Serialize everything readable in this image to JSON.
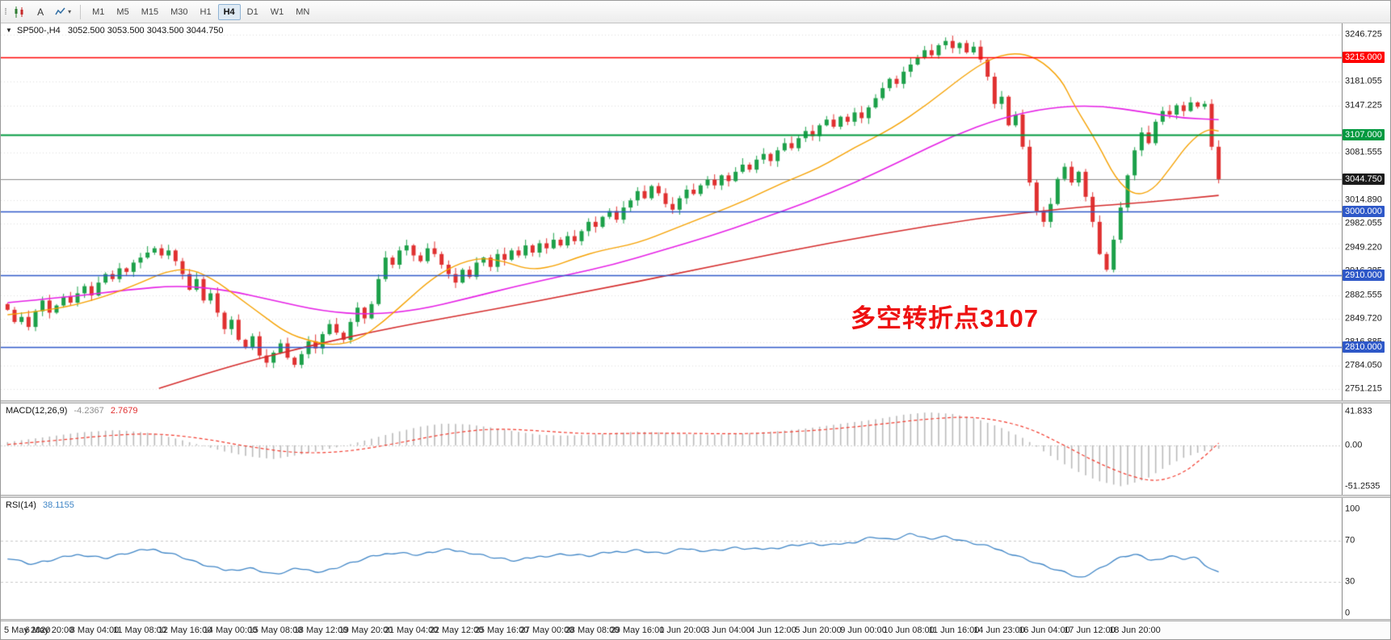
{
  "icons": {
    "symbol_dropdown": "▼",
    "indicator_dropdown": "▾",
    "drag_handle": "⁞⁞"
  },
  "toolbar": {
    "timeframes": [
      "M1",
      "M5",
      "M15",
      "M30",
      "H1",
      "H4",
      "D1",
      "W1",
      "MN"
    ],
    "active_timeframe": "H4",
    "cursor_button_label": "A"
  },
  "header": {
    "symbol": "SP500-,H4",
    "ohlc": "3052.500 3053.500 3043.500 3044.750"
  },
  "chart_data": {
    "type": "candlestick",
    "symbol": "SP500-",
    "timeframe": "H4",
    "ohlc_display": {
      "open": "3052.500",
      "high": "3053.500",
      "low": "3043.500",
      "close": "3044.750"
    },
    "price_range": {
      "max": 3246.725,
      "min": 2751.215
    },
    "price_axis_ticks": [
      "3246.725",
      "3181.055",
      "3147.225",
      "3081.555",
      "3014.890",
      "2982.055",
      "2949.220",
      "2916.385",
      "2882.555",
      "2849.720",
      "2816.885",
      "2784.050",
      "2751.215"
    ],
    "level_lines": [
      {
        "price": 3215.0,
        "label": "3215.000",
        "color": "#FF0000",
        "width": 1.5
      },
      {
        "price": 3107.0,
        "label": "3107.000",
        "color": "#00993F",
        "width": 2
      },
      {
        "price": 3000.0,
        "label": "3000.000",
        "color": "#2E58C8",
        "width": 1.5
      },
      {
        "price": 2910.0,
        "label": "2910.000",
        "color": "#2E58C8",
        "width": 1.5
      },
      {
        "price": 2810.0,
        "label": "2810.000",
        "color": "#2E58C8",
        "width": 1.5
      }
    ],
    "current_price": {
      "price": 3044.75,
      "label": "3044.750",
      "bg": "#1b1b1b",
      "line_color": "#8a8a8a"
    },
    "candle_colors": {
      "up": "#1CA049",
      "down": "#E03030"
    },
    "closes": [
      2862,
      2845,
      2852,
      2838,
      2860,
      2875,
      2858,
      2868,
      2880,
      2872,
      2885,
      2895,
      2882,
      2900,
      2912,
      2905,
      2920,
      2915,
      2928,
      2935,
      2942,
      2948,
      2938,
      2945,
      2930,
      2912,
      2890,
      2905,
      2875,
      2885,
      2858,
      2835,
      2848,
      2820,
      2810,
      2825,
      2798,
      2788,
      2802,
      2815,
      2795,
      2785,
      2800,
      2818,
      2808,
      2828,
      2842,
      2830,
      2820,
      2845,
      2865,
      2850,
      2870,
      2905,
      2935,
      2925,
      2945,
      2952,
      2938,
      2930,
      2948,
      2940,
      2925,
      2912,
      2900,
      2918,
      2908,
      2928,
      2935,
      2922,
      2940,
      2932,
      2945,
      2938,
      2952,
      2942,
      2955,
      2948,
      2960,
      2952,
      2965,
      2958,
      2972,
      2985,
      2978,
      2992,
      3000,
      2988,
      3005,
      3015,
      3028,
      3018,
      3035,
      3025,
      3010,
      3002,
      3018,
      3030,
      3024,
      3036,
      3044,
      3036,
      3050,
      3042,
      3055,
      3065,
      3058,
      3072,
      3080,
      3070,
      3085,
      3095,
      3088,
      3102,
      3112,
      3105,
      3120,
      3128,
      3118,
      3132,
      3125,
      3138,
      3130,
      3145,
      3158,
      3172,
      3185,
      3178,
      3195,
      3205,
      3215,
      3225,
      3218,
      3232,
      3238,
      3228,
      3235,
      3222,
      3230,
      3212,
      3188,
      3150,
      3160,
      3120,
      3135,
      3090,
      3040,
      3000,
      2985,
      3010,
      3045,
      3062,
      3040,
      3055,
      3020,
      2985,
      2940,
      2918,
      2960,
      3005,
      3050,
      3085,
      3110,
      3095,
      3125,
      3140,
      3135,
      3148,
      3140,
      3152,
      3146,
      3150,
      3090,
      3044.75
    ],
    "ma_fast_orange": {
      "color": "#F5A100",
      "anchors": [
        [
          0.0,
          2855
        ],
        [
          0.04,
          2862
        ],
        [
          0.08,
          2880
        ],
        [
          0.11,
          2900
        ],
        [
          0.13,
          2915
        ],
        [
          0.15,
          2920
        ],
        [
          0.17,
          2905
        ],
        [
          0.19,
          2880
        ],
        [
          0.21,
          2855
        ],
        [
          0.23,
          2830
        ],
        [
          0.25,
          2818
        ],
        [
          0.27,
          2812
        ],
        [
          0.29,
          2820
        ],
        [
          0.31,
          2845
        ],
        [
          0.33,
          2875
        ],
        [
          0.35,
          2905
        ],
        [
          0.37,
          2925
        ],
        [
          0.39,
          2935
        ],
        [
          0.41,
          2930
        ],
        [
          0.43,
          2918
        ],
        [
          0.45,
          2922
        ],
        [
          0.47,
          2935
        ],
        [
          0.49,
          2945
        ],
        [
          0.52,
          2955
        ],
        [
          0.55,
          2975
        ],
        [
          0.58,
          2995
        ],
        [
          0.61,
          3015
        ],
        [
          0.64,
          3040
        ],
        [
          0.67,
          3060
        ],
        [
          0.7,
          3090
        ],
        [
          0.73,
          3115
        ],
        [
          0.76,
          3150
        ],
        [
          0.79,
          3190
        ],
        [
          0.81,
          3212
        ],
        [
          0.83,
          3222
        ],
        [
          0.85,
          3215
        ],
        [
          0.87,
          3185
        ],
        [
          0.88,
          3150
        ],
        [
          0.9,
          3095
        ],
        [
          0.915,
          3045
        ],
        [
          0.93,
          3022
        ],
        [
          0.945,
          3028
        ],
        [
          0.96,
          3060
        ],
        [
          0.975,
          3095
        ],
        [
          0.99,
          3115
        ],
        [
          1.0,
          3112
        ]
      ]
    },
    "ma_mid_magenta": {
      "color": "#E520E5",
      "anchors": [
        [
          0.0,
          2872
        ],
        [
          0.05,
          2880
        ],
        [
          0.1,
          2890
        ],
        [
          0.14,
          2896
        ],
        [
          0.18,
          2890
        ],
        [
          0.22,
          2875
        ],
        [
          0.26,
          2860
        ],
        [
          0.3,
          2855
        ],
        [
          0.34,
          2862
        ],
        [
          0.38,
          2878
        ],
        [
          0.42,
          2895
        ],
        [
          0.46,
          2910
        ],
        [
          0.5,
          2925
        ],
        [
          0.54,
          2945
        ],
        [
          0.58,
          2965
        ],
        [
          0.62,
          2988
        ],
        [
          0.66,
          3012
        ],
        [
          0.7,
          3040
        ],
        [
          0.74,
          3072
        ],
        [
          0.78,
          3105
        ],
        [
          0.82,
          3130
        ],
        [
          0.86,
          3145
        ],
        [
          0.9,
          3148
        ],
        [
          0.94,
          3138
        ],
        [
          0.97,
          3130
        ],
        [
          1.0,
          3128
        ]
      ]
    },
    "ma_slow_red": {
      "color": "#D42B2B",
      "anchors": [
        [
          0.125,
          2752
        ],
        [
          0.18,
          2782
        ],
        [
          0.25,
          2812
        ],
        [
          0.32,
          2838
        ],
        [
          0.4,
          2862
        ],
        [
          0.48,
          2888
        ],
        [
          0.56,
          2915
        ],
        [
          0.64,
          2943
        ],
        [
          0.72,
          2968
        ],
        [
          0.8,
          2990
        ],
        [
          0.88,
          3005
        ],
        [
          0.94,
          3012
        ],
        [
          1.0,
          3022
        ]
      ]
    },
    "macd": {
      "label": "MACD(12,26,9)",
      "value1": "-4.2367",
      "value2": "2.7679",
      "axis_labels": [
        "41.833",
        "0.00",
        "-51.2535"
      ],
      "range": {
        "max": 41.833,
        "min": -51.2535
      },
      "histogram_color": "#b9b9b9",
      "signal_color": "#f23b2e",
      "histogram_anchors": [
        [
          0.0,
          4
        ],
        [
          0.03,
          10
        ],
        [
          0.06,
          16
        ],
        [
          0.09,
          19
        ],
        [
          0.12,
          15
        ],
        [
          0.14,
          8
        ],
        [
          0.16,
          0
        ],
        [
          0.18,
          -8
        ],
        [
          0.2,
          -14
        ],
        [
          0.22,
          -17
        ],
        [
          0.24,
          -12
        ],
        [
          0.26,
          -6
        ],
        [
          0.28,
          0
        ],
        [
          0.3,
          8
        ],
        [
          0.32,
          16
        ],
        [
          0.34,
          23
        ],
        [
          0.36,
          27
        ],
        [
          0.38,
          26
        ],
        [
          0.4,
          22
        ],
        [
          0.42,
          17
        ],
        [
          0.44,
          13
        ],
        [
          0.46,
          12
        ],
        [
          0.48,
          13
        ],
        [
          0.5,
          15
        ],
        [
          0.52,
          17
        ],
        [
          0.54,
          16
        ],
        [
          0.56,
          14
        ],
        [
          0.58,
          13
        ],
        [
          0.6,
          14
        ],
        [
          0.62,
          16
        ],
        [
          0.64,
          18
        ],
        [
          0.66,
          21
        ],
        [
          0.68,
          25
        ],
        [
          0.7,
          29
        ],
        [
          0.72,
          33
        ],
        [
          0.74,
          38
        ],
        [
          0.76,
          41
        ],
        [
          0.78,
          39
        ],
        [
          0.8,
          33
        ],
        [
          0.82,
          22
        ],
        [
          0.84,
          8
        ],
        [
          0.86,
          -12
        ],
        [
          0.88,
          -30
        ],
        [
          0.9,
          -44
        ],
        [
          0.92,
          -51
        ],
        [
          0.94,
          -42
        ],
        [
          0.955,
          -28
        ],
        [
          0.97,
          -16
        ],
        [
          0.985,
          -8
        ],
        [
          1.0,
          -4.2
        ]
      ],
      "signal_anchors": [
        [
          0.0,
          1
        ],
        [
          0.04,
          6
        ],
        [
          0.08,
          12
        ],
        [
          0.12,
          15
        ],
        [
          0.16,
          9
        ],
        [
          0.2,
          -2
        ],
        [
          0.24,
          -10
        ],
        [
          0.28,
          -8
        ],
        [
          0.32,
          2
        ],
        [
          0.36,
          14
        ],
        [
          0.4,
          21
        ],
        [
          0.44,
          18
        ],
        [
          0.48,
          14
        ],
        [
          0.52,
          15
        ],
        [
          0.56,
          15
        ],
        [
          0.6,
          14
        ],
        [
          0.64,
          16
        ],
        [
          0.68,
          20
        ],
        [
          0.72,
          26
        ],
        [
          0.76,
          33
        ],
        [
          0.8,
          36
        ],
        [
          0.84,
          24
        ],
        [
          0.87,
          2
        ],
        [
          0.9,
          -22
        ],
        [
          0.93,
          -40
        ],
        [
          0.95,
          -45
        ],
        [
          0.97,
          -35
        ],
        [
          0.985,
          -18
        ],
        [
          1.0,
          2.8
        ]
      ]
    },
    "rsi": {
      "label": "RSI(14)",
      "value": "38.1155",
      "axis_labels": [
        "100",
        "70",
        "30",
        "0"
      ],
      "levels": [
        70,
        30
      ],
      "line_color": "#3f85c6",
      "anchors": [
        [
          0.0,
          54
        ],
        [
          0.02,
          47
        ],
        [
          0.04,
          52
        ],
        [
          0.06,
          57
        ],
        [
          0.08,
          53
        ],
        [
          0.1,
          58
        ],
        [
          0.12,
          62
        ],
        [
          0.14,
          56
        ],
        [
          0.16,
          47
        ],
        [
          0.18,
          41
        ],
        [
          0.2,
          44
        ],
        [
          0.22,
          37
        ],
        [
          0.24,
          43
        ],
        [
          0.26,
          40
        ],
        [
          0.28,
          47
        ],
        [
          0.3,
          54
        ],
        [
          0.32,
          59
        ],
        [
          0.34,
          56
        ],
        [
          0.36,
          61
        ],
        [
          0.38,
          59
        ],
        [
          0.4,
          54
        ],
        [
          0.42,
          50
        ],
        [
          0.44,
          55
        ],
        [
          0.46,
          57
        ],
        [
          0.48,
          55
        ],
        [
          0.5,
          59
        ],
        [
          0.52,
          61
        ],
        [
          0.54,
          57
        ],
        [
          0.56,
          62
        ],
        [
          0.58,
          60
        ],
        [
          0.6,
          63
        ],
        [
          0.62,
          61
        ],
        [
          0.64,
          64
        ],
        [
          0.66,
          67
        ],
        [
          0.68,
          65
        ],
        [
          0.7,
          69
        ],
        [
          0.715,
          74
        ],
        [
          0.73,
          70
        ],
        [
          0.745,
          76
        ],
        [
          0.76,
          72
        ],
        [
          0.775,
          74
        ],
        [
          0.79,
          69
        ],
        [
          0.81,
          64
        ],
        [
          0.83,
          57
        ],
        [
          0.85,
          48
        ],
        [
          0.87,
          40
        ],
        [
          0.885,
          34
        ],
        [
          0.9,
          42
        ],
        [
          0.915,
          52
        ],
        [
          0.93,
          57
        ],
        [
          0.945,
          50
        ],
        [
          0.96,
          56
        ],
        [
          0.97,
          52
        ],
        [
          0.98,
          55
        ],
        [
          0.99,
          45
        ],
        [
          1.0,
          38.1
        ]
      ]
    },
    "time_labels": [
      "5 May 2020",
      "6 May 20:00",
      "8 May 04:00",
      "11 May 08:00",
      "12 May 16:00",
      "14 May 00:00",
      "15 May 08:00",
      "18 May 12:00",
      "19 May 20:00",
      "21 May 04:00",
      "22 May 12:00",
      "25 May 16:00",
      "27 May 00:00",
      "28 May 08:00",
      "29 May 16:00",
      "1 Jun 20:00",
      "3 Jun 04:00",
      "4 Jun 12:00",
      "5 Jun 20:00",
      "9 Jun 00:00",
      "10 Jun 08:00",
      "11 Jun 16:00",
      "14 Jun 23:00",
      "16 Jun 04:00",
      "17 Jun 12:00",
      "18 Jun 20:00"
    ],
    "annotation": {
      "text": "多空转折点3107",
      "color": "#EE1111"
    },
    "grid": {
      "color": "#dedede",
      "style": "dotted-horizontal"
    }
  }
}
